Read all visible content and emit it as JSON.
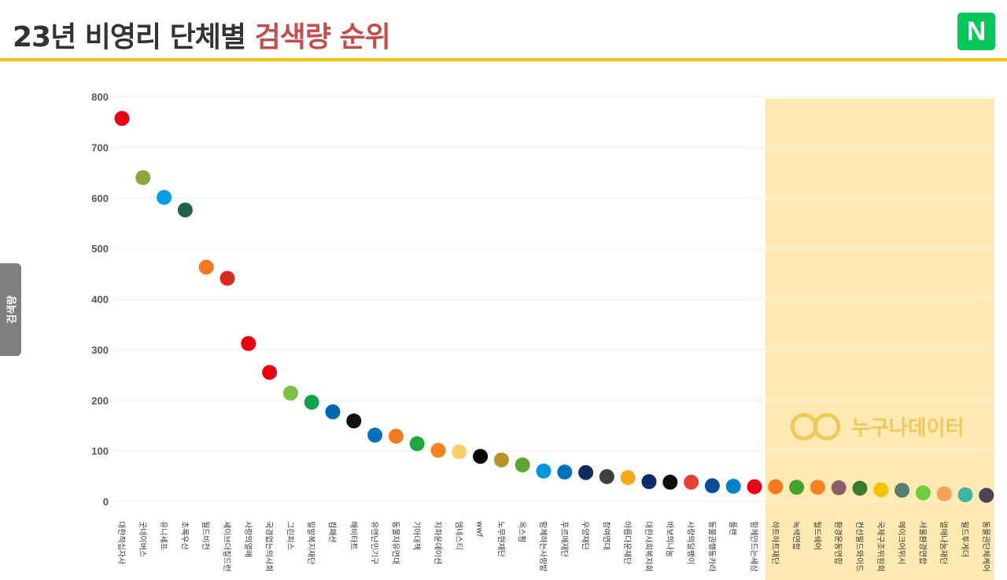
{
  "header": {
    "title_main": "23년 비영리 단체별",
    "title_accent": "검색량 순위",
    "logo_letter": "N"
  },
  "watermark": {
    "text": "누구나데이터"
  },
  "colors": {
    "title": "#333333",
    "accent": "#c0504d",
    "rule": "#f5c400",
    "naver": "#03c75a",
    "highlight": "#ffeab3",
    "tab": "#7f7f7f"
  },
  "chart_data": {
    "type": "scatter",
    "ylabel": "검색량",
    "ylim": [
      0,
      800
    ],
    "yticks": [
      0,
      100,
      200,
      300,
      400,
      500,
      600,
      700,
      800
    ],
    "grid": true,
    "highlight_from_index": 31,
    "points": [
      {
        "label": "대한적십자사",
        "value": 757,
        "color": "#e60012"
      },
      {
        "label": "굿네이버스",
        "value": 640,
        "color": "#8aa63f"
      },
      {
        "label": "유니세프",
        "value": 601,
        "color": "#009fe3"
      },
      {
        "label": "초록우산",
        "value": 576,
        "color": "#1f6150"
      },
      {
        "label": "월드비전",
        "value": 463,
        "color": "#f47920"
      },
      {
        "label": "세이브더칠드런",
        "value": 441,
        "color": "#da291c"
      },
      {
        "label": "사랑의열매",
        "value": 312,
        "color": "#e60012"
      },
      {
        "label": "국경없는의사회",
        "value": 255,
        "color": "#e60012"
      },
      {
        "label": "그린피스",
        "value": 214,
        "color": "#7ac143"
      },
      {
        "label": "밀알복지재단",
        "value": 196,
        "color": "#12a14b"
      },
      {
        "label": "컴패션",
        "value": 177,
        "color": "#0066b3"
      },
      {
        "label": "해비타트",
        "value": 159,
        "color": "#111111"
      },
      {
        "label": "유엔난민기구",
        "value": 131,
        "color": "#0072bc"
      },
      {
        "label": "동물자유연대",
        "value": 129,
        "color": "#f47920"
      },
      {
        "label": "기아대책",
        "value": 114,
        "color": "#1fa83d"
      },
      {
        "label": "지파운데이션",
        "value": 101,
        "color": "#f58220"
      },
      {
        "label": "엠네스티",
        "value": 98,
        "color": "#f5d06a"
      },
      {
        "label": "wwf",
        "value": 89,
        "color": "#000000"
      },
      {
        "label": "노무현재단",
        "value": 82,
        "color": "#b8932a"
      },
      {
        "label": "옥스팜",
        "value": 72,
        "color": "#5da432"
      },
      {
        "label": "함께하는사랑밭",
        "value": 60,
        "color": "#0095da"
      },
      {
        "label": "푸르메재단",
        "value": 58,
        "color": "#0071bc"
      },
      {
        "label": "우양재단",
        "value": 57,
        "color": "#0d2d5e"
      },
      {
        "label": "참여연대",
        "value": 49,
        "color": "#3f3f3f"
      },
      {
        "label": "아름다운재단",
        "value": 47,
        "color": "#f7a823"
      },
      {
        "label": "대한사회복지회",
        "value": 39,
        "color": "#0a2a6b"
      },
      {
        "label": "바보의나눔",
        "value": 38,
        "color": "#0d0d0d"
      },
      {
        "label": "사랑의달팽이",
        "value": 38,
        "color": "#e8403a"
      },
      {
        "label": "동물권행동카라",
        "value": 31,
        "color": "#0a4b9c"
      },
      {
        "label": "플랜",
        "value": 30,
        "color": "#0082c8"
      },
      {
        "label": "함께만드는세상",
        "value": 29,
        "color": "#e60012"
      },
      {
        "label": "하트하트재단",
        "value": 29,
        "color": "#f47920"
      },
      {
        "label": "녹색연합",
        "value": 28,
        "color": "#45a12e"
      },
      {
        "label": "월드쉐어",
        "value": 28,
        "color": "#f58220"
      },
      {
        "label": "환경운동연합",
        "value": 27,
        "color": "#8b5e6b"
      },
      {
        "label": "컨선월드와이드",
        "value": 26,
        "color": "#3d7a2a"
      },
      {
        "label": "국제구조위원회",
        "value": 23,
        "color": "#f5c400"
      },
      {
        "label": "메이크어위시",
        "value": 22,
        "color": "#5b7c74"
      },
      {
        "label": "서울환경연합",
        "value": 17,
        "color": "#6ccd3f"
      },
      {
        "label": "열매나눔재단",
        "value": 15,
        "color": "#f5a15a"
      },
      {
        "label": "월드투게더",
        "value": 13,
        "color": "#3cb4a0"
      },
      {
        "label": "동물권단체케어",
        "value": 12,
        "color": "#4a4453"
      }
    ]
  }
}
